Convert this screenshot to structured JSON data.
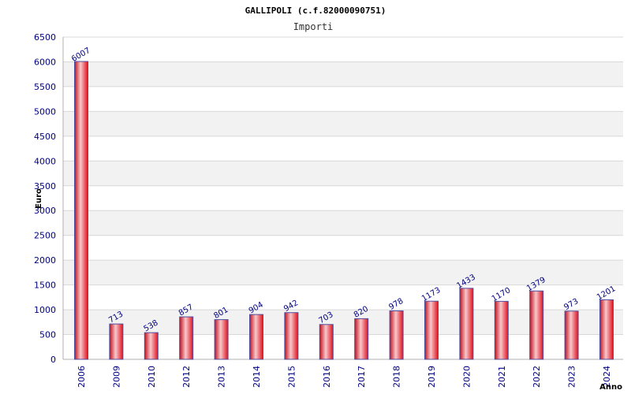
{
  "title": "GALLIPOLI (c.f.82000090751)",
  "subtitle": "Importi",
  "colors": {
    "bar_fill": "#e0202a",
    "bar_highlight": "#f8c8cc",
    "bar_edge": "#5050a0",
    "label": "#000080",
    "band": "#f2f2f2",
    "grid": "#d8d8d8"
  },
  "chart_data": {
    "type": "bar",
    "title": "GALLIPOLI (c.f.82000090751)",
    "subtitle": "Importi",
    "xlabel": "Anno",
    "ylabel": "Euro",
    "categories": [
      "2006",
      "2009",
      "2010",
      "2012",
      "2013",
      "2014",
      "2015",
      "2016",
      "2017",
      "2018",
      "2019",
      "2020",
      "2021",
      "2022",
      "2023",
      "2024"
    ],
    "values": [
      6007,
      713,
      538,
      857,
      801,
      904,
      942,
      703,
      820,
      978,
      1173,
      1433,
      1170,
      1379,
      973,
      1201
    ],
    "ylim": [
      0,
      6500
    ],
    "yticks": [
      0,
      500,
      1000,
      1500,
      2000,
      2500,
      3000,
      3500,
      4000,
      4500,
      5000,
      5500,
      6000,
      6500
    ],
    "grid": true,
    "legend": "none"
  }
}
